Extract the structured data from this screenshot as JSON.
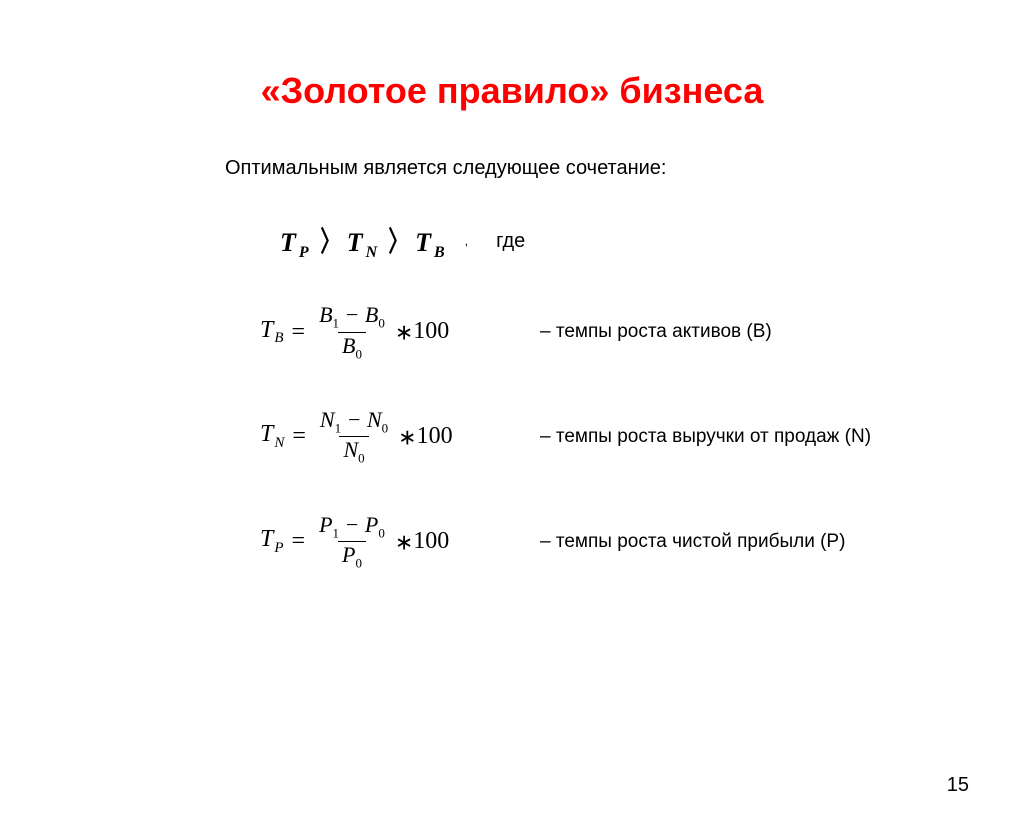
{
  "slide": {
    "title": "«Золотое правило» бизнеса",
    "subtitle": "Оптимальным является следующее сочетание:",
    "where_label": "где",
    "page_number": "15",
    "title_color": "#ff0000",
    "background_color": "#ffffff",
    "text_color": "#000000",
    "title_fontsize": 36,
    "body_fontsize": 20
  },
  "inequality": {
    "terms": [
      "T_P",
      "T_N",
      "T_B"
    ],
    "operator": ">",
    "comma": ","
  },
  "formulas": [
    {
      "lhs_var": "T",
      "lhs_sub": "B",
      "num_var": "B",
      "num_sub1": "1",
      "num_sub2": "0",
      "denom_var": "B",
      "denom_sub": "0",
      "multiplier": "100",
      "description": "– темпы роста активов (В)"
    },
    {
      "lhs_var": "T",
      "lhs_sub": "N",
      "num_var": "N",
      "num_sub1": "1",
      "num_sub2": "0",
      "denom_var": "N",
      "denom_sub": "0",
      "multiplier": "100",
      "description": "– темпы роста выручки от продаж (N)"
    },
    {
      "lhs_var": "T",
      "lhs_sub": "P",
      "num_var": "P",
      "num_sub1": "1",
      "num_sub2": "0",
      "denom_var": "P",
      "denom_sub": "0",
      "multiplier": "100",
      "description": "– темпы роста чистой прибыли (Р)"
    }
  ]
}
